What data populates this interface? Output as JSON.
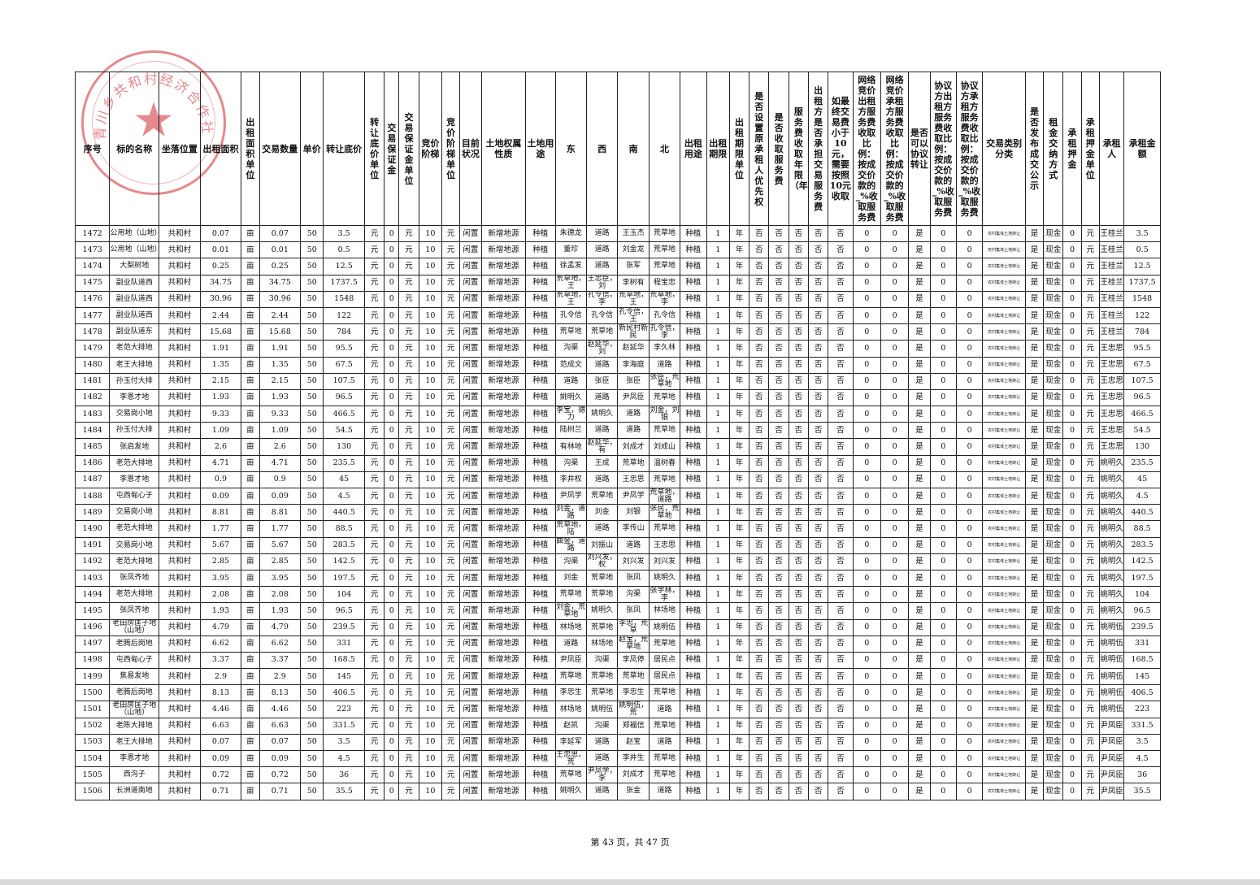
{
  "headers": [
    "序号",
    "标的名称",
    "坐落位置",
    "出租面积",
    "出租面积单位",
    "交易数量",
    "单价",
    "转让底价",
    "转让底价单位",
    "交易保证金",
    "交易保证金单位",
    "竞价阶梯",
    "竞价阶梯单位",
    "目前状况",
    "土地权属性质",
    "土地用途",
    "东",
    "西",
    "南",
    "北",
    "出租用途",
    "出租期限",
    "出租期限单位",
    "是否设置原承租人优先权",
    "是否收取服务费",
    "服务费收取年限（年）",
    "出租方是否承担交易服务费",
    "如最终交易费小于10元，需要按照10元收取",
    "网络竞价出租方服务费收取比例：按成交价款的_%收取服务费",
    "网络竞价承租方服务费收取比例：按成交价款的_%收取服务费",
    "是否可以协议转让",
    "协议方出租方服务费收取比例：按成交价款的_%收取服务费",
    "协议方承租方服务费收取比例：按成交价款的_%收取服务费",
    "交易类别分类",
    "是否发布成交公示",
    "租金交纳方式",
    "承租押金",
    "承租押金单位",
    "承租人",
    "承租金额"
  ],
  "common": {
    "location": "共和村",
    "unit_mu": "亩",
    "price": "50",
    "unit_yuan": "元",
    "zero": "0",
    "step": "10",
    "status": "闲置",
    "ownership": "新增地源",
    "land_use": "种植",
    "rent_use": "种植",
    "term": "1",
    "term_unit": "年",
    "no": "否",
    "yes": "是",
    "category": "农村集体土地转让",
    "payment": "现金"
  },
  "rows": [
    [
      "1472",
      "公用地（山地）",
      "0.07",
      "0.07",
      "3.5",
      "朱德龙",
      "道路",
      "王玉杰",
      "荒草地",
      "王桂兰",
      "3.5"
    ],
    [
      "1473",
      "公用地（山地）",
      "0.01",
      "0.01",
      "0.5",
      "董珍",
      "道路",
      "刘金龙",
      "荒草地",
      "王桂兰",
      "0.5"
    ],
    [
      "1474",
      "大梨树地",
      "0.25",
      "0.25",
      "12.5",
      "徐孟发",
      "道路",
      "张军",
      "荒草地",
      "王桂兰",
      "12.5"
    ],
    [
      "1475",
      "副业队道西",
      "34.75",
      "34.75",
      "1737.5",
      "荒草地，王",
      "王忠臣，刘",
      "李树有",
      "程宝忠",
      "王桂兰",
      "1737.5"
    ],
    [
      "1476",
      "副业队道西",
      "30.96",
      "30.96",
      "1548",
      "荒草地，王",
      "孔令信，李",
      "荒草地，王",
      "荒草地，李",
      "王桂兰",
      "1548"
    ],
    [
      "1477",
      "副业队道西",
      "2.44",
      "2.44",
      "122",
      "孔令信",
      "孔令信",
      "孔令信，王",
      "孔令信",
      "王桂兰",
      "122"
    ],
    [
      "1478",
      "副业队道东",
      "15.68",
      "15.68",
      "784",
      "荒草地",
      "荒草地",
      "新民村新民",
      "孔令信，李",
      "王桂兰",
      "784"
    ],
    [
      "1479",
      "老范大排地",
      "1.91",
      "1.91",
      "95.5",
      "沟渠",
      "赵延华，刘",
      "赵延华",
      "李久林",
      "王忠思",
      "95.5"
    ],
    [
      "1480",
      "老王大排地",
      "1.35",
      "1.35",
      "67.5",
      "范成文",
      "道路",
      "李海庭",
      "道路",
      "王忠思",
      "67.5"
    ],
    [
      "1481",
      "孙玉付大排",
      "2.15",
      "2.15",
      "107.5",
      "道路",
      "张臣",
      "张臣",
      "张臣，荒草地",
      "王忠思",
      "107.5"
    ],
    [
      "1482",
      "李恩才地",
      "1.93",
      "1.93",
      "96.5",
      "姚明久",
      "道路",
      "尹凤臣",
      "荒草地",
      "王忠思",
      "96.5"
    ],
    [
      "1483",
      "交易岗小地",
      "9.33",
      "9.33",
      "466.5",
      "李宝，德力",
      "姚明久",
      "道路",
      "刘金，刘银",
      "王忠思",
      "466.5"
    ],
    [
      "1484",
      "孙玉付大排",
      "1.09",
      "1.09",
      "54.5",
      "陆树兰",
      "道路",
      "道路",
      "荒草地",
      "王忠思",
      "54.5"
    ],
    [
      "1485",
      "张启发地",
      "2.6",
      "2.6",
      "130",
      "有林地",
      "赵延华，有",
      "刘成才",
      "刘成山",
      "王忠思",
      "130"
    ],
    [
      "1486",
      "老范大排地",
      "4.71",
      "4.71",
      "235.5",
      "沟渠",
      "王成",
      "荒草地",
      "温树春",
      "姚明久",
      "235.5"
    ],
    [
      "1487",
      "李恩才地",
      "0.9",
      "0.9",
      "45",
      "李井权",
      "道路",
      "王忠思",
      "荒草地",
      "姚明久",
      "45"
    ],
    [
      "1488",
      "屯西甸心子",
      "0.09",
      "0.09",
      "4.5",
      "尹凤学",
      "荒草地",
      "尹凤学",
      "荒草地，道路",
      "姚明久",
      "4.5"
    ],
    [
      "1489",
      "交易岗小地",
      "8.81",
      "8.81",
      "440.5",
      "刘金，道路",
      "刘金",
      "刘银",
      "张民，荒草地",
      "姚明久",
      "440.5"
    ],
    [
      "1490",
      "老范大排地",
      "1.77",
      "1.77",
      "88.5",
      "荒草地，陆",
      "道路",
      "李传山",
      "荒草地",
      "姚明久",
      "88.5"
    ],
    [
      "1491",
      "交易岗小地",
      "5.67",
      "5.67",
      "283.5",
      "曲金，道路",
      "刘振山",
      "道路",
      "王忠思",
      "姚明久",
      "283.5"
    ],
    [
      "1492",
      "老范大排地",
      "2.85",
      "2.85",
      "142.5",
      "沟渠",
      "刘兴发，权",
      "刘兴发",
      "刘兴发",
      "姚明久",
      "142.5"
    ],
    [
      "1493",
      "张凤齐地",
      "3.95",
      "3.95",
      "197.5",
      "刘金",
      "荒草地",
      "张凤",
      "姚明久",
      "姚明久",
      "197.5"
    ],
    [
      "1494",
      "老范大排地",
      "2.08",
      "2.08",
      "104",
      "荒草地",
      "荒草地",
      "沟渠",
      "张学林，李",
      "姚明久",
      "104"
    ],
    [
      "1495",
      "张凤齐地",
      "1.93",
      "1.93",
      "96.5",
      "刘金，荒草地",
      "姚明久",
      "张凤",
      "林场地",
      "姚明久",
      "96.5"
    ],
    [
      "1496",
      "老田房匡子地（山地）",
      "4.79",
      "4.79",
      "239.5",
      "林场地",
      "荒草地",
      "李忠，荒草",
      "姚明伍",
      "姚明伍",
      "239.5"
    ],
    [
      "1497",
      "老腾后岗地",
      "6.62",
      "6.62",
      "331",
      "道路",
      "林场地",
      "赵宝，荒草地",
      "荒草地",
      "姚明伍",
      "331"
    ],
    [
      "1498",
      "屯西甸心子",
      "3.37",
      "3.37",
      "168.5",
      "尹凤臣",
      "沟渠",
      "李凤停",
      "居民点",
      "姚明伍",
      "168.5"
    ],
    [
      "1499",
      "焦易发地",
      "2.9",
      "2.9",
      "145",
      "荒草地",
      "荒草地",
      "荒草地",
      "居民点",
      "姚明伍",
      "145"
    ],
    [
      "1500",
      "老腾后岗地",
      "8.13",
      "8.13",
      "406.5",
      "李忠生",
      "荒草地",
      "李忠生",
      "荒草地",
      "姚明伍",
      "406.5"
    ],
    [
      "1501",
      "老田房匡子地（山地）",
      "4.46",
      "4.46",
      "223",
      "林场地",
      "姚明伍",
      "姚明伍，荒",
      "道路",
      "姚明伍",
      "223"
    ],
    [
      "1502",
      "老陈大排地",
      "6.63",
      "6.63",
      "331.5",
      "赵凯",
      "沟渠",
      "郑福信",
      "荒草地",
      "尹凤臣",
      "331.5"
    ],
    [
      "1503",
      "老王大排地",
      "0.07",
      "0.07",
      "3.5",
      "李延军",
      "道路",
      "赵宝",
      "道路",
      "尹凤臣",
      "3.5"
    ],
    [
      "1504",
      "李恩才地",
      "0.09",
      "0.09",
      "4.5",
      "王忠思，荒",
      "道路",
      "李井生",
      "荒草地",
      "尹凤臣",
      "4.5"
    ],
    [
      "1505",
      "西沟子",
      "0.72",
      "0.72",
      "36",
      "荒草地",
      "尹凤学，李",
      "刘成才",
      "荒草地",
      "尹凤臣",
      "36"
    ],
    [
      "1506",
      "长洲道南地",
      "0.71",
      "0.71",
      "35.5",
      "姚明久",
      "道路",
      "张金",
      "道路",
      "尹凤臣",
      "35.5"
    ]
  ],
  "stamp_text": "青川乡共和村经济合作社",
  "footer": "第 43 页，共 47 页"
}
